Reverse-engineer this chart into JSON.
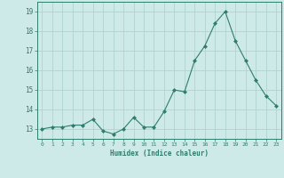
{
  "title": "",
  "x": [
    0,
    1,
    2,
    3,
    4,
    5,
    6,
    7,
    8,
    9,
    10,
    11,
    12,
    13,
    14,
    15,
    16,
    17,
    18,
    19,
    20,
    21,
    22,
    23
  ],
  "y": [
    13.0,
    13.1,
    13.1,
    13.2,
    13.2,
    13.5,
    12.9,
    12.75,
    13.0,
    13.6,
    13.1,
    13.1,
    13.9,
    15.0,
    14.9,
    16.5,
    17.25,
    18.4,
    19.0,
    17.5,
    16.5,
    15.5,
    14.7,
    14.2
  ],
  "line_color": "#2e7d6e",
  "marker": "D",
  "marker_size": 2.0,
  "bg_color": "#ceeae8",
  "grid_color": "#b0d4d0",
  "xlabel": "Humidex (Indice chaleur)",
  "ylabel": "",
  "ylim": [
    12.5,
    19.5
  ],
  "yticks": [
    13,
    14,
    15,
    16,
    17,
    18,
    19
  ],
  "xlim": [
    -0.5,
    23.5
  ],
  "xticks": [
    0,
    1,
    2,
    3,
    4,
    5,
    6,
    7,
    8,
    9,
    10,
    11,
    12,
    13,
    14,
    15,
    16,
    17,
    18,
    19,
    20,
    21,
    22,
    23
  ]
}
